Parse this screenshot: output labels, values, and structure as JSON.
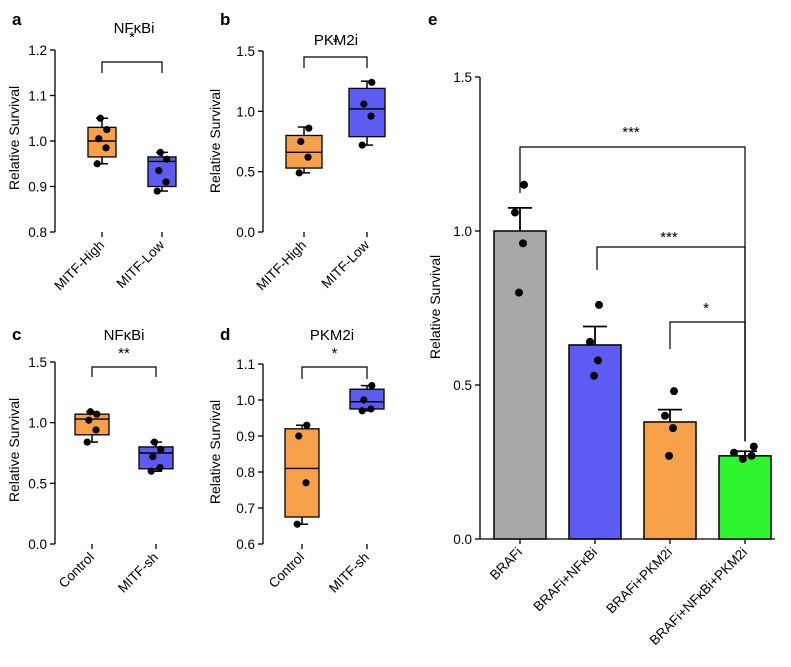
{
  "colors": {
    "orange": "#f7a04a",
    "blue": "#5c5cf4",
    "gray": "#a8a8a8",
    "green": "#2ef52e",
    "ink": "#000000"
  },
  "chart_data": [
    {
      "panel": "a",
      "type": "box",
      "title": "NFκBi",
      "ylabel": "Relative Survival",
      "ylim": [
        0.8,
        1.2
      ],
      "yticks": [
        0.8,
        0.9,
        1.0,
        1.1,
        1.2
      ],
      "ytick_labels": [
        "0.8",
        "0.9",
        "1.0",
        "1.1",
        "1.2"
      ],
      "categories": [
        "MITF-High",
        "MITF-Low"
      ],
      "boxes": [
        {
          "color": "orange",
          "min": 0.95,
          "q1": 0.965,
          "median": 1.0,
          "q3": 1.03,
          "max": 1.05,
          "points": [
            0.95,
            0.985,
            1.005,
            1.025,
            1.05
          ]
        },
        {
          "color": "blue",
          "min": 0.89,
          "q1": 0.9,
          "median": 0.955,
          "q3": 0.965,
          "max": 0.975,
          "points": [
            0.89,
            0.91,
            0.935,
            0.96,
            0.975
          ]
        }
      ],
      "significance": [
        {
          "from": 0,
          "to": 1,
          "label": "*"
        }
      ]
    },
    {
      "panel": "b",
      "type": "box",
      "title": "PKM2i",
      "ylabel": "Relative Survival",
      "ylim": [
        0.0,
        1.5
      ],
      "yticks": [
        0.0,
        0.5,
        1.0,
        1.5
      ],
      "ytick_labels": [
        "0.0",
        "0.5",
        "1.0",
        "1.5"
      ],
      "categories": [
        "MITF-High",
        "MITF-Low"
      ],
      "boxes": [
        {
          "color": "orange",
          "min": 0.49,
          "q1": 0.53,
          "median": 0.66,
          "q3": 0.8,
          "max": 0.87,
          "points": [
            0.49,
            0.62,
            0.75,
            0.86
          ]
        },
        {
          "color": "blue",
          "min": 0.72,
          "q1": 0.79,
          "median": 1.02,
          "q3": 1.19,
          "max": 1.25,
          "points": [
            0.72,
            0.96,
            1.06,
            1.24
          ]
        }
      ],
      "significance": [
        {
          "from": 0,
          "to": 1,
          "label": "*"
        }
      ]
    },
    {
      "panel": "c",
      "type": "box",
      "title": "NFκBi",
      "ylabel": "Relative Survival",
      "ylim": [
        0.0,
        1.5
      ],
      "yticks": [
        0.0,
        0.5,
        1.0,
        1.5
      ],
      "ytick_labels": [
        "0.0",
        "0.5",
        "1.0",
        "1.5"
      ],
      "categories": [
        "Control",
        "MITF-sh"
      ],
      "boxes": [
        {
          "color": "orange",
          "min": 0.84,
          "q1": 0.9,
          "median": 1.03,
          "q3": 1.07,
          "max": 1.09,
          "points": [
            0.84,
            0.94,
            1.02,
            1.07,
            1.09
          ]
        },
        {
          "color": "blue",
          "min": 0.6,
          "q1": 0.62,
          "median": 0.75,
          "q3": 0.8,
          "max": 0.84,
          "points": [
            0.6,
            0.63,
            0.72,
            0.78,
            0.84
          ]
        }
      ],
      "significance": [
        {
          "from": 0,
          "to": 1,
          "label": "**"
        }
      ]
    },
    {
      "panel": "d",
      "type": "box",
      "title": "PKM2i",
      "ylabel": "Relative Survival",
      "ylim": [
        0.6,
        1.1
      ],
      "yticks": [
        0.6,
        0.7,
        0.8,
        0.9,
        1.0,
        1.1
      ],
      "ytick_labels": [
        "0.6",
        "0.7",
        "0.8",
        "0.9",
        "1.0",
        "1.1"
      ],
      "categories": [
        "Control",
        "MITF-sh"
      ],
      "boxes": [
        {
          "color": "orange",
          "min": 0.655,
          "q1": 0.675,
          "median": 0.81,
          "q3": 0.92,
          "max": 0.93,
          "points": [
            0.655,
            0.77,
            0.9,
            0.93
          ]
        },
        {
          "color": "blue",
          "min": 0.97,
          "q1": 0.975,
          "median": 0.995,
          "q3": 1.03,
          "max": 1.04,
          "points": [
            0.97,
            0.975,
            1.0,
            1.04
          ]
        }
      ],
      "significance": [
        {
          "from": 0,
          "to": 1,
          "label": "*"
        }
      ]
    },
    {
      "panel": "e",
      "type": "bar",
      "ylabel": "Relative Survival",
      "ylim": [
        0.0,
        1.5
      ],
      "yticks": [
        0.0,
        0.5,
        1.0,
        1.5
      ],
      "ytick_labels": [
        "0.0",
        "0.5",
        "1.0",
        "1.5"
      ],
      "categories": [
        "BRAFi",
        "BRAFi+NFκBi",
        "BRAFi+PKM2i",
        "BRAFi+NFκBi+PKM2i"
      ],
      "values": [
        1.0,
        0.63,
        0.38,
        0.27
      ],
      "errors": [
        0.075,
        0.06,
        0.04,
        0.015
      ],
      "bar_colors": [
        "gray",
        "blue",
        "orange",
        "green"
      ],
      "points": [
        [
          0.8,
          0.96,
          1.06,
          1.15
        ],
        [
          0.53,
          0.58,
          0.64,
          0.76
        ],
        [
          0.27,
          0.36,
          0.4,
          0.48
        ],
        [
          0.26,
          0.27,
          0.28,
          0.3
        ]
      ],
      "significance": [
        {
          "from": 0,
          "to": 3,
          "label": "***"
        },
        {
          "from": 1,
          "to": 3,
          "label": "***"
        },
        {
          "from": 2,
          "to": 3,
          "label": "*"
        }
      ]
    }
  ]
}
